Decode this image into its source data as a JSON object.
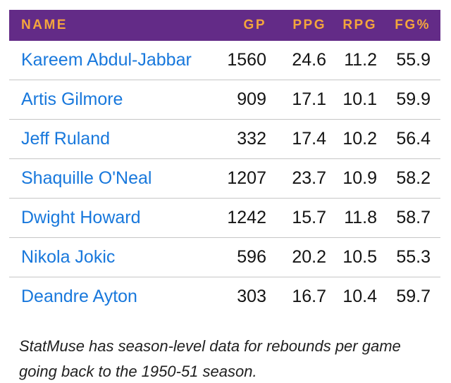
{
  "table": {
    "columns": [
      {
        "key": "name",
        "label": "NAME"
      },
      {
        "key": "gp",
        "label": "GP"
      },
      {
        "key": "ppg",
        "label": "PPG"
      },
      {
        "key": "rpg",
        "label": "RPG"
      },
      {
        "key": "fg_pct",
        "label": "FG%"
      }
    ],
    "rows": [
      {
        "name": "Kareem Abdul-Jabbar",
        "gp": "1560",
        "ppg": "24.6",
        "rpg": "11.2",
        "fg_pct": "55.9"
      },
      {
        "name": "Artis Gilmore",
        "gp": "909",
        "ppg": "17.1",
        "rpg": "10.1",
        "fg_pct": "59.9"
      },
      {
        "name": "Jeff Ruland",
        "gp": "332",
        "ppg": "17.4",
        "rpg": "10.2",
        "fg_pct": "56.4"
      },
      {
        "name": "Shaquille O'Neal",
        "gp": "1207",
        "ppg": "23.7",
        "rpg": "10.9",
        "fg_pct": "58.2"
      },
      {
        "name": "Dwight Howard",
        "gp": "1242",
        "ppg": "15.7",
        "rpg": "11.8",
        "fg_pct": "58.7"
      },
      {
        "name": "Nikola Jokic",
        "gp": "596",
        "ppg": "20.2",
        "rpg": "10.5",
        "fg_pct": "55.3"
      },
      {
        "name": "Deandre Ayton",
        "gp": "303",
        "ppg": "16.7",
        "rpg": "10.4",
        "fg_pct": "59.7"
      }
    ]
  },
  "footnote": {
    "text": "StatMuse has season-level data for rebounds per game going back to the 1950-51 season."
  },
  "colors": {
    "header_bg": "#632B87",
    "header_text": "#F4A53C",
    "player_link": "#1878DC",
    "value_text": "#141414",
    "divider": "#C6C6C6",
    "background": "#FFFFFF"
  }
}
